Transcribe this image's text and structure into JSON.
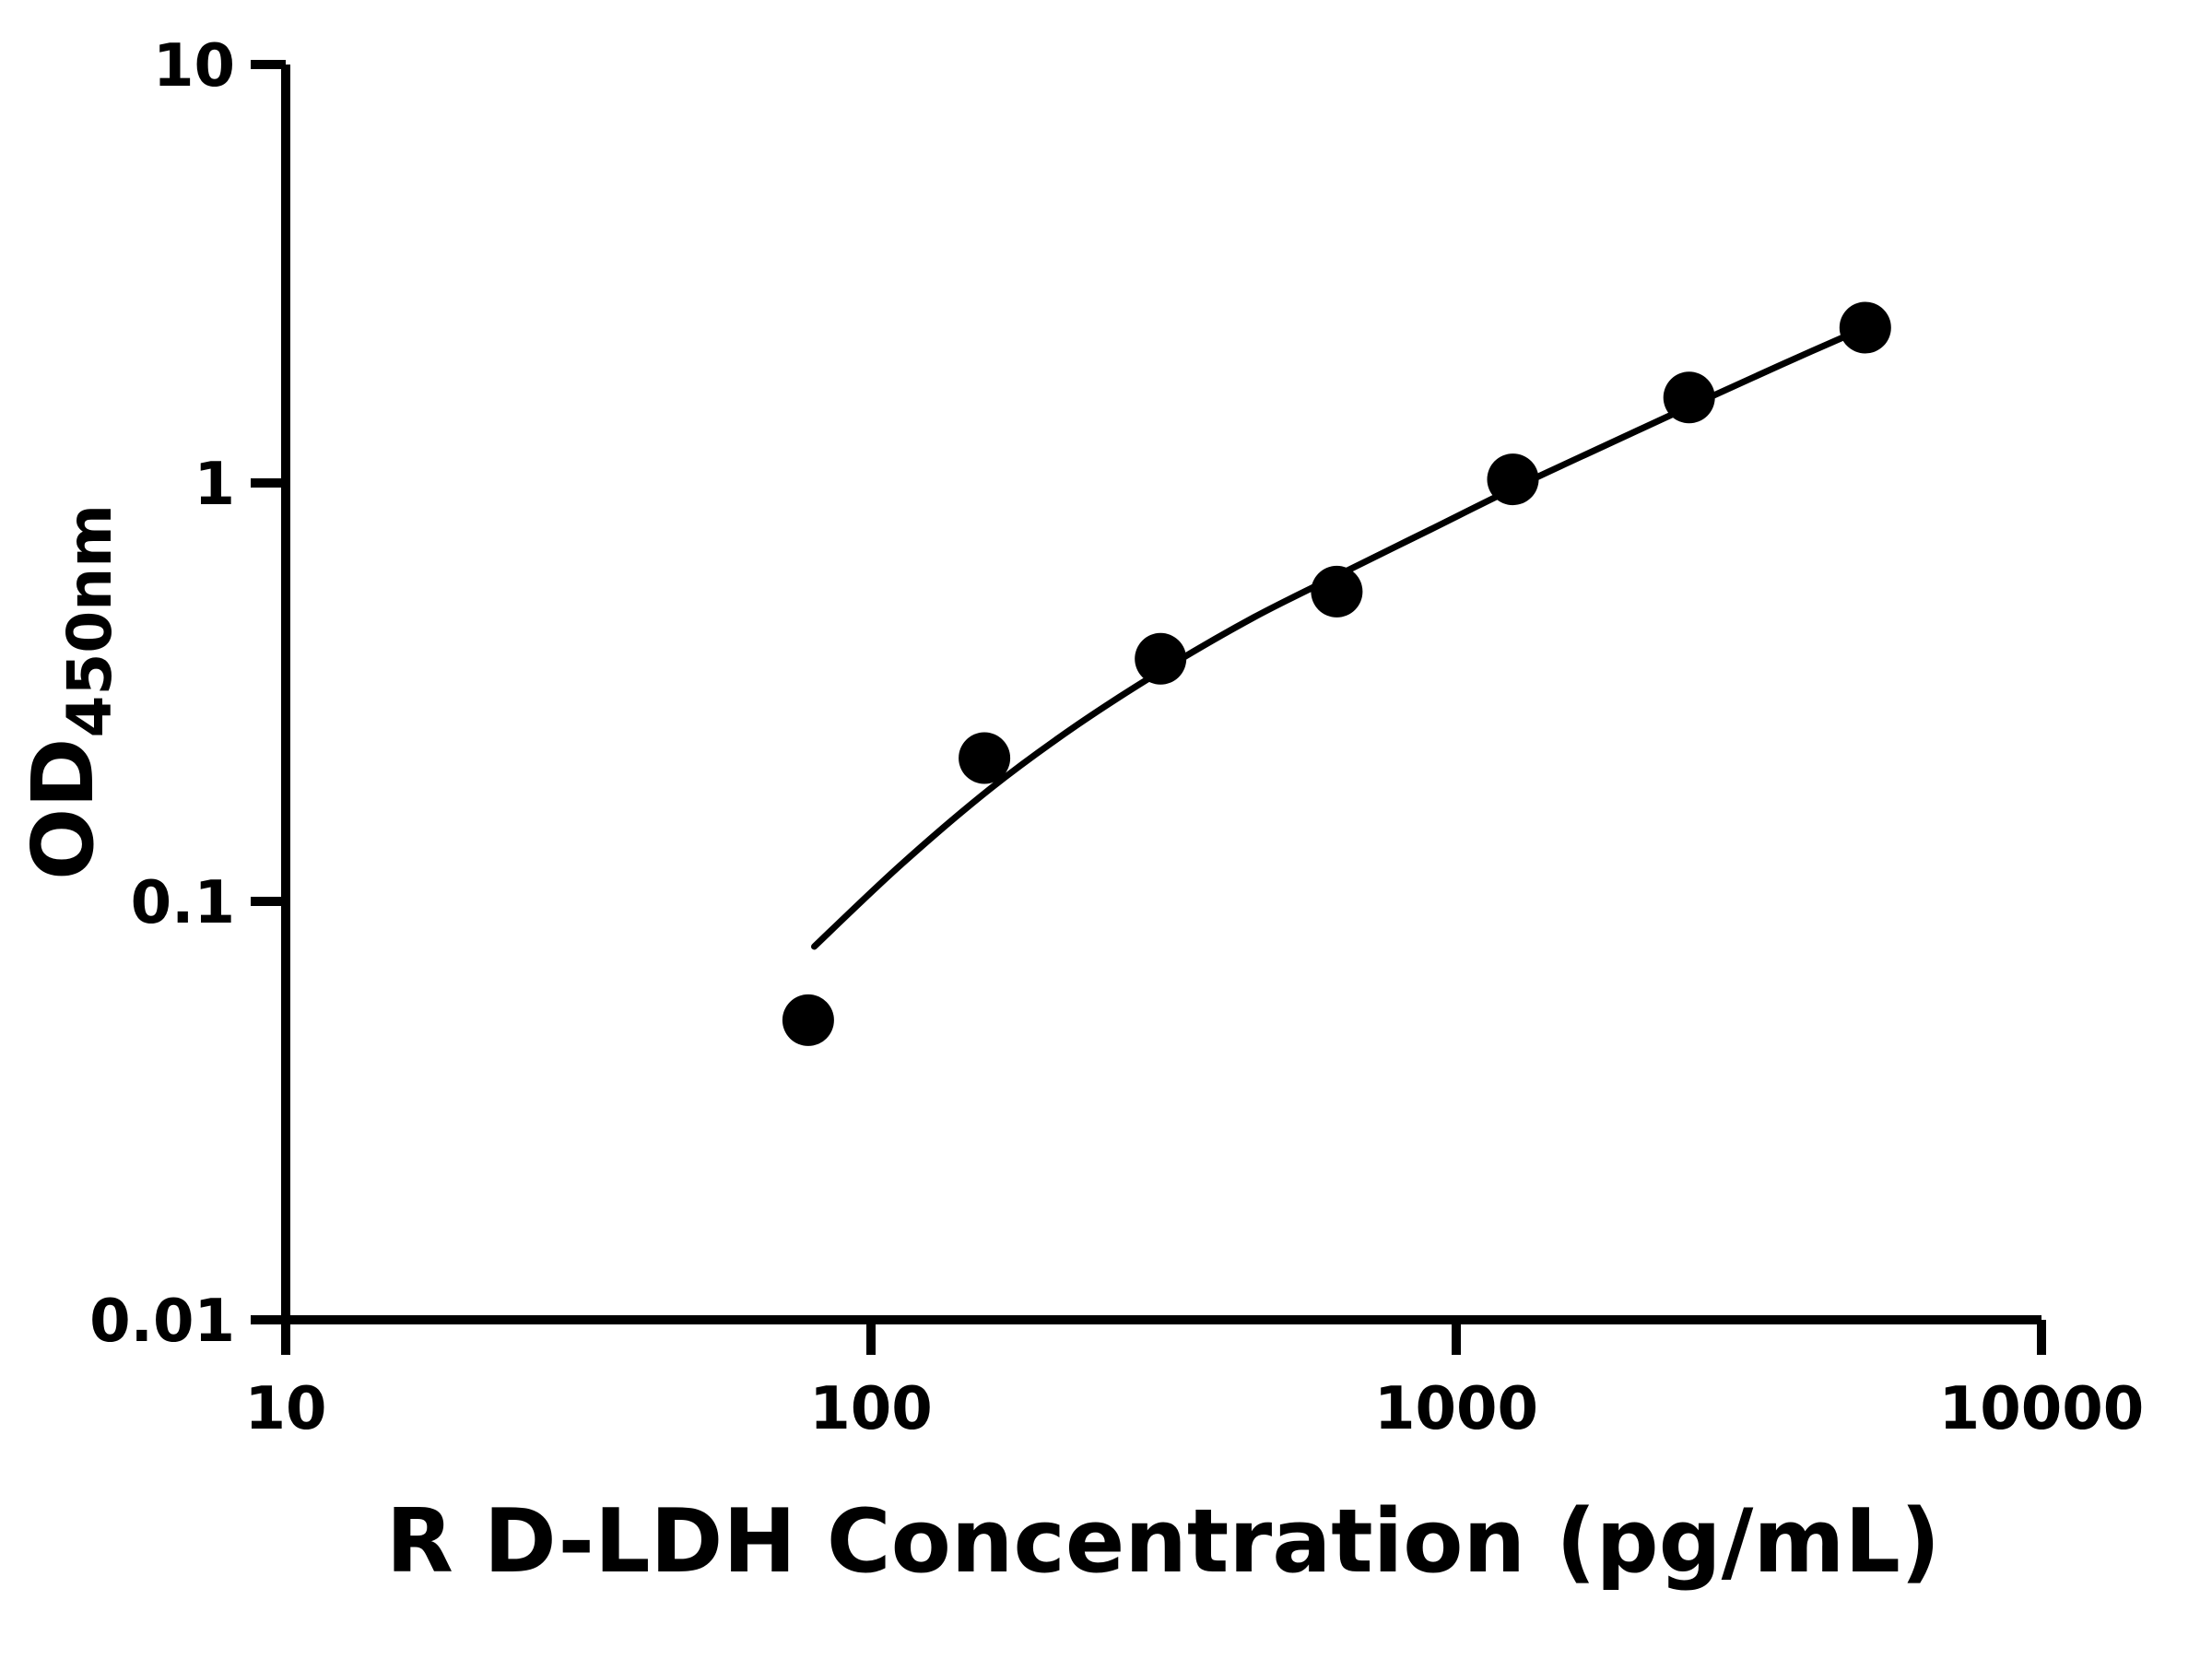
{
  "chart_data": {
    "type": "scatter",
    "xlabel": "R D-LDH Concentration (pg/mL)",
    "ylabel_main": "OD",
    "ylabel_sub": "450nm",
    "x_scale": "log",
    "y_scale": "log",
    "xlim": [
      10,
      10000
    ],
    "ylim": [
      0.01,
      10
    ],
    "x_ticks": [
      10,
      100,
      1000,
      10000
    ],
    "x_tick_labels": [
      "10",
      "100",
      "1000",
      "10000"
    ],
    "y_ticks": [
      0.01,
      0.1,
      1,
      10
    ],
    "y_tick_labels": [
      "0.01",
      "0.1",
      "1",
      "10"
    ],
    "grid": false,
    "legend": "none",
    "axis_color": "#000000",
    "marker_color": "#000000",
    "line_color": "#000000",
    "background_color": "#ffffff",
    "points": [
      {
        "x": 78.125,
        "y": 0.052
      },
      {
        "x": 156.25,
        "y": 0.22
      },
      {
        "x": 312.5,
        "y": 0.38
      },
      {
        "x": 625,
        "y": 0.55
      },
      {
        "x": 1250,
        "y": 1.02
      },
      {
        "x": 2500,
        "y": 1.6
      },
      {
        "x": 5000,
        "y": 2.35
      }
    ],
    "fit_curve": [
      {
        "x": 80,
        "y": 0.078
      },
      {
        "x": 113,
        "y": 0.123
      },
      {
        "x": 160,
        "y": 0.186
      },
      {
        "x": 226,
        "y": 0.265
      },
      {
        "x": 320,
        "y": 0.362
      },
      {
        "x": 452,
        "y": 0.478
      },
      {
        "x": 640,
        "y": 0.61
      },
      {
        "x": 905,
        "y": 0.775
      },
      {
        "x": 1280,
        "y": 0.985
      },
      {
        "x": 1810,
        "y": 1.235
      },
      {
        "x": 2560,
        "y": 1.545
      },
      {
        "x": 3600,
        "y": 1.92
      },
      {
        "x": 5000,
        "y": 2.35
      }
    ]
  }
}
